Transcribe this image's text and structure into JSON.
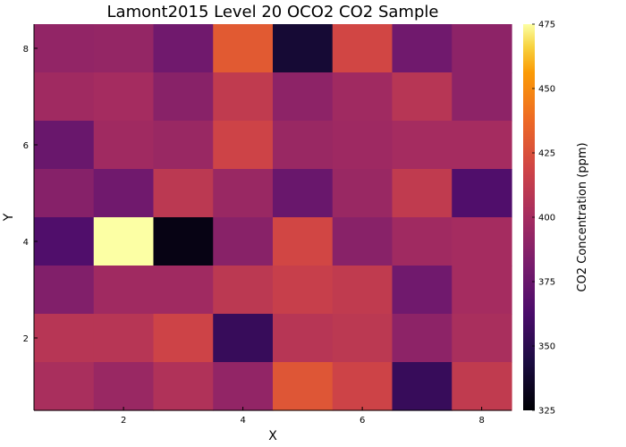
{
  "chart_data": {
    "type": "heatmap",
    "title": "Lamont2015 Level 20 OCO2 CO2 Sample",
    "xlabel": "X",
    "ylabel": "Y",
    "colorbar_label": "CO2 Concentration (ppm)",
    "colormap": "inferno",
    "color_range": [
      325,
      475
    ],
    "colorbar_ticks": [
      325,
      350,
      375,
      400,
      425,
      450,
      475
    ],
    "x_ticks": [
      2,
      4,
      6,
      8
    ],
    "y_ticks": [
      2,
      4,
      6,
      8
    ],
    "x_categories": [
      1,
      2,
      3,
      4,
      5,
      6,
      7,
      8
    ],
    "y_categories": [
      1,
      2,
      3,
      4,
      5,
      6,
      7,
      8
    ],
    "rows_from_top_y8_to_y1": [
      [
        392,
        393,
        378,
        430,
        340,
        420,
        378,
        390
      ],
      [
        398,
        400,
        388,
        412,
        390,
        398,
        408,
        390
      ],
      [
        375,
        398,
        395,
        418,
        395,
        397,
        400,
        400
      ],
      [
        387,
        378,
        410,
        395,
        375,
        395,
        412,
        365
      ],
      [
        365,
        475,
        330,
        388,
        420,
        388,
        398,
        400
      ],
      [
        385,
        398,
        398,
        410,
        415,
        412,
        378,
        400
      ],
      [
        408,
        408,
        418,
        355,
        408,
        410,
        390,
        402
      ],
      [
        402,
        395,
        405,
        392,
        428,
        418,
        355,
        412
      ]
    ],
    "grid": false
  }
}
